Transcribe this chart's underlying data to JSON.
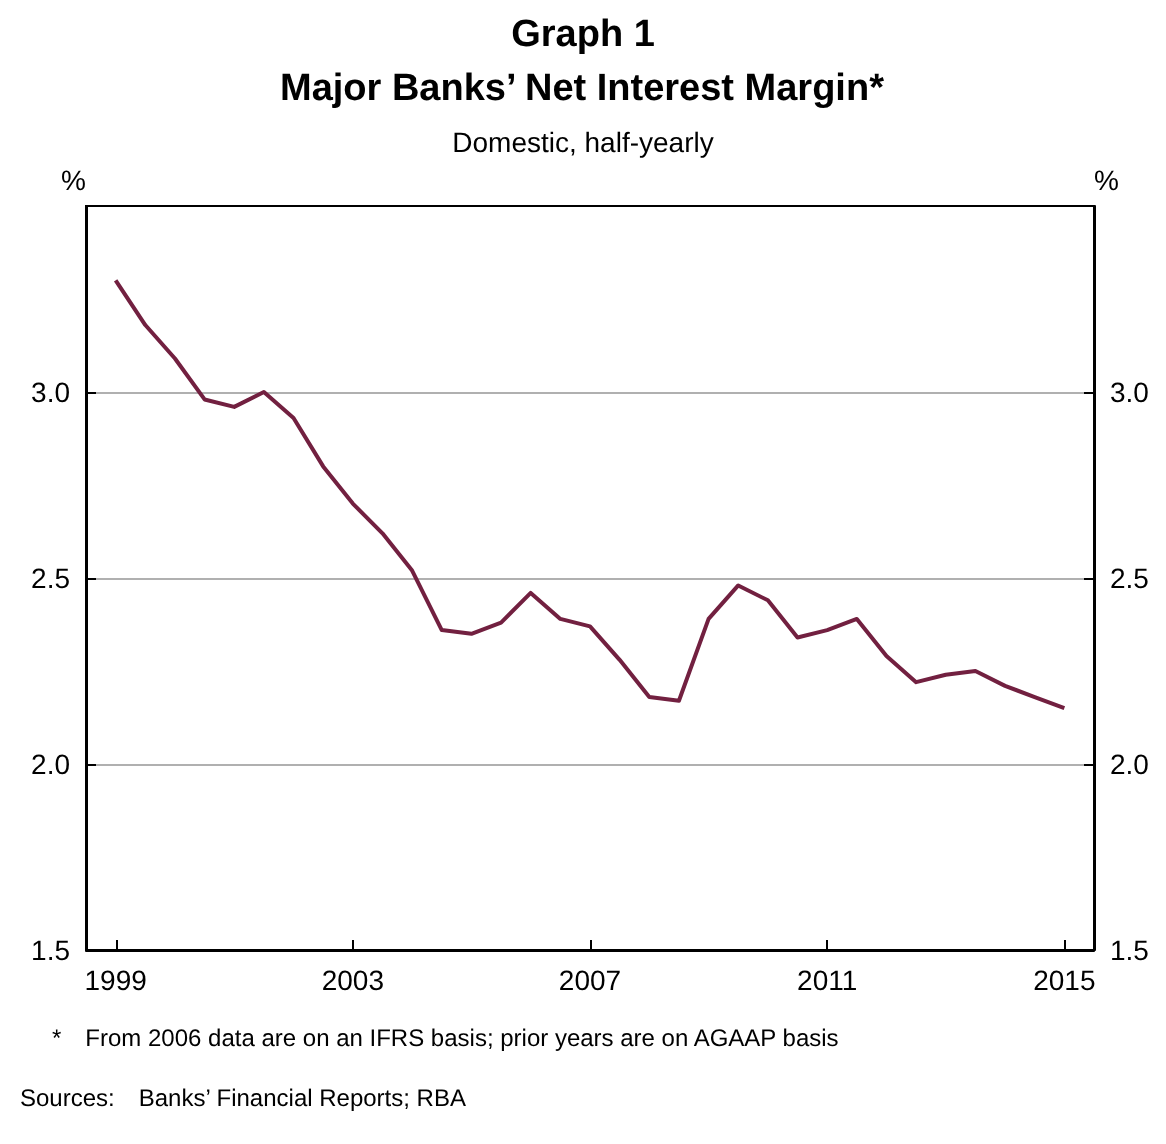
{
  "chart_data": {
    "type": "line",
    "title": "Graph 1\nMajor Banks’ Net Interest Margin*",
    "subtitle": "Domestic, half-yearly",
    "ylabel": "%",
    "y2label": "%",
    "x": [
      1999,
      1999.5,
      2000,
      2000.5,
      2001,
      2001.5,
      2002,
      2002.5,
      2003,
      2003.5,
      2004,
      2004.5,
      2005,
      2005.5,
      2006,
      2006.5,
      2007,
      2007.5,
      2008,
      2008.5,
      2009,
      2009.5,
      2010,
      2010.5,
      2011,
      2011.5,
      2012,
      2012.5,
      2013,
      2013.5,
      2014,
      2014.5,
      2015
    ],
    "series": [
      {
        "color": "#722040",
        "values": [
          3.3,
          3.18,
          3.09,
          2.98,
          2.96,
          3.0,
          2.93,
          2.8,
          2.7,
          2.62,
          2.52,
          2.36,
          2.35,
          2.38,
          2.46,
          2.39,
          2.37,
          2.28,
          2.18,
          2.17,
          2.39,
          2.48,
          2.44,
          2.34,
          2.36,
          2.39,
          2.29,
          2.22,
          2.24,
          2.25,
          2.21,
          2.18,
          2.15
        ]
      }
    ],
    "xlim": [
      1998.5,
      2015.5
    ],
    "xticks": [
      1999,
      2003,
      2007,
      2011,
      2015
    ],
    "ylim": [
      1.5,
      3.5
    ],
    "yticks": [
      1.5,
      {
        "value": 2,
        "label": "2.0"
      },
      2.5,
      {
        "value": 3,
        "label": "3.0"
      }
    ],
    "y2lim": [
      1.5,
      3.5
    ],
    "y2ticks": [
      1.5,
      {
        "value": 2,
        "label": "2.0"
      },
      2.5,
      {
        "value": 3,
        "label": "3.0"
      }
    ],
    "grid": "y",
    "marker": "none",
    "line_style": "solid",
    "annotations": [
      "* From 2006 data are on an IFRS basis; prior years are on AGAAP basis",
      "Sources: Banks’ Financial Reports; RBA"
    ]
  }
}
